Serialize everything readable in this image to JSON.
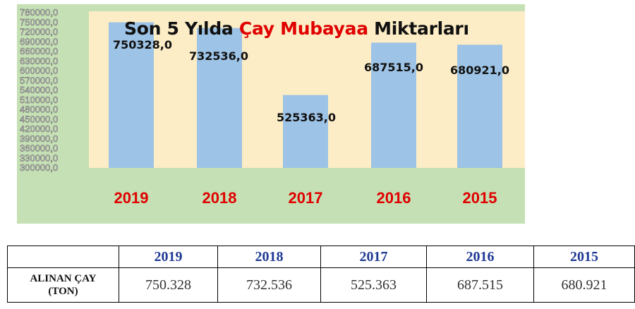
{
  "chart_data": {
    "type": "bar",
    "title_parts": [
      "Son 5 Yılda ",
      "Çay Mubayaa",
      " Miktarları"
    ],
    "categories": [
      "2019",
      "2018",
      "2017",
      "2016",
      "2015"
    ],
    "values": [
      750328.0,
      732536.0,
      525363.0,
      687515.0,
      680921.0
    ],
    "data_labels": [
      "750328,0",
      "732536,0",
      "525363,0",
      "687515,0",
      "680921,0"
    ],
    "ylim": [
      300000,
      780000
    ],
    "yticks": [
      300000,
      330000,
      360000,
      390000,
      420000,
      450000,
      480000,
      510000,
      540000,
      570000,
      600000,
      630000,
      660000,
      690000,
      720000,
      750000,
      780000
    ],
    "ytick_labels": [
      "300000,0",
      "330000,0",
      "360000,0",
      "390000,0",
      "420000,0",
      "450000,0",
      "480000,0",
      "510000,0",
      "540000,0",
      "570000,0",
      "600000,0",
      "630000,0",
      "660000,0",
      "690000,0",
      "720000,0",
      "750000,0",
      "780000,0"
    ],
    "grid": false,
    "legend": "none",
    "colors": {
      "panel": "#c5e0b4",
      "plot": "#fdedc6",
      "bar": "#9dc3e6",
      "category_label": "#e00000",
      "title_accent": "#e00000"
    }
  },
  "table": {
    "headers": [
      "",
      "2019",
      "2018",
      "2017",
      "2016",
      "2015"
    ],
    "row_label": [
      "ALINAN ÇAY",
      "(TON)"
    ],
    "values": [
      "750.328",
      "732.536",
      "525.363",
      "687.515",
      "680.921"
    ]
  }
}
